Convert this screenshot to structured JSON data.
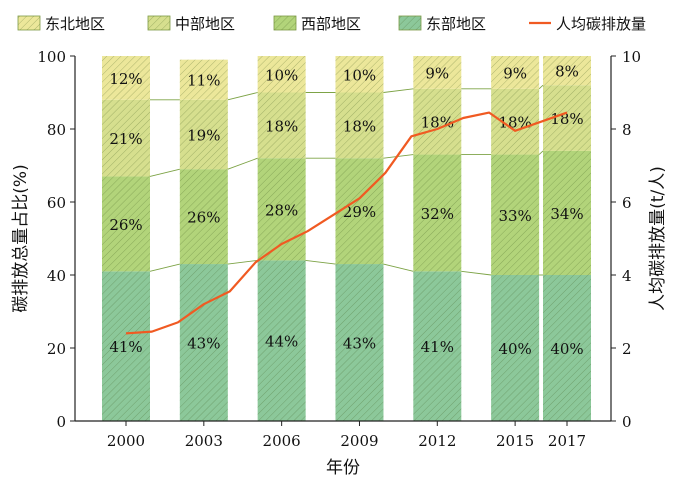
{
  "chart_data": {
    "type": "bar",
    "stacked": true,
    "categories": [
      "2000",
      "2003",
      "2006",
      "2009",
      "2012",
      "2015",
      "2017"
    ],
    "series": [
      {
        "name": "东部地区",
        "values": [
          41,
          43,
          44,
          43,
          41,
          40,
          40
        ],
        "color": "#8cc89a",
        "hatch": true
      },
      {
        "name": "西部地区",
        "values": [
          26,
          26,
          28,
          29,
          32,
          33,
          34
        ],
        "color": "#b2d47a",
        "hatch": true
      },
      {
        "name": "中部地区",
        "values": [
          21,
          19,
          18,
          18,
          18,
          18,
          18
        ],
        "color": "#d6df8e",
        "hatch": true
      },
      {
        "name": "东北地区",
        "values": [
          12,
          11,
          10,
          10,
          9,
          9,
          8
        ],
        "color": "#ece79a",
        "hatch": true
      }
    ],
    "line": {
      "name": "人均碳排放量",
      "color": "#f05a22",
      "points": [
        [
          2000,
          2.4
        ],
        [
          2001,
          2.45
        ],
        [
          2002,
          2.7
        ],
        [
          2003,
          3.2
        ],
        [
          2004,
          3.55
        ],
        [
          2005,
          4.35
        ],
        [
          2006,
          4.85
        ],
        [
          2007,
          5.2
        ],
        [
          2008,
          5.65
        ],
        [
          2009,
          6.1
        ],
        [
          2010,
          6.8
        ],
        [
          2011,
          7.8
        ],
        [
          2012,
          8.0
        ],
        [
          2013,
          8.3
        ],
        [
          2014,
          8.45
        ],
        [
          2015,
          7.95
        ],
        [
          2016,
          8.2
        ],
        [
          2017,
          8.45
        ]
      ]
    },
    "ylabel": "碳排放总量占比(%)",
    "ylabel_right": "人均碳排放量(t/人)",
    "xlabel": "年份",
    "ylim": [
      0,
      100
    ],
    "ylim_right": [
      0,
      10
    ],
    "yticks": [
      "0",
      "20",
      "40",
      "60",
      "80",
      "100"
    ],
    "yticks_right": [
      "0",
      "2",
      "4",
      "6",
      "8",
      "10"
    ],
    "legend": {
      "position": "top",
      "entries": [
        "东北地区",
        "中部地区",
        "西部地区",
        "东部地区",
        "人均碳排放量"
      ]
    },
    "grid": false
  }
}
